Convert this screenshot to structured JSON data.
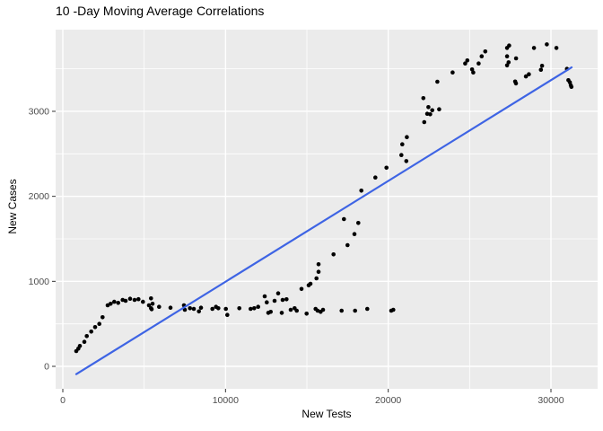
{
  "chart_data": {
    "type": "scatter",
    "title": "10 -Day Moving Average Correlations",
    "xlabel": "New Tests",
    "ylabel": "New Cases",
    "xlim": [
      -441,
      32868
    ],
    "ylim": [
      -264,
      3961
    ],
    "x_ticks": [
      0,
      10000,
      20000,
      30000
    ],
    "x_tick_labels": [
      "0",
      "10000",
      "20000",
      "30000"
    ],
    "x_minor_ticks": [
      5000,
      15000,
      25000
    ],
    "y_ticks": [
      0,
      1000,
      2000,
      3000
    ],
    "y_tick_labels": [
      "0",
      "1000",
      "2000",
      "3000"
    ],
    "y_minor_ticks": [
      500,
      1500,
      2500,
      3500
    ],
    "grid": true,
    "legend": "none",
    "colors": {
      "panel_bg": "#EBEBEB",
      "grid": "#FFFFFF",
      "point": "#000000",
      "trend": "#3E64E4",
      "tick_text": "#4D4D4D",
      "tick_mark": "#333333",
      "axis_title": "#000000",
      "title": "#000000"
    },
    "trend_line": {
      "type": "linear",
      "x1": 827,
      "y1": -92,
      "x2": 31268,
      "y2": 3517
    },
    "points": [
      [
        827,
        180
      ],
      [
        954,
        208
      ],
      [
        1048,
        240
      ],
      [
        1324,
        288
      ],
      [
        1472,
        356
      ],
      [
        1748,
        409
      ],
      [
        1985,
        462
      ],
      [
        2245,
        500
      ],
      [
        2443,
        578
      ],
      [
        2758,
        718
      ],
      [
        2940,
        736
      ],
      [
        3161,
        760
      ],
      [
        3403,
        747
      ],
      [
        3679,
        782
      ],
      [
        3861,
        771
      ],
      [
        4136,
        795
      ],
      [
        4412,
        782
      ],
      [
        4650,
        790
      ],
      [
        4925,
        760
      ],
      [
        5294,
        718
      ],
      [
        5421,
        683
      ],
      [
        5460,
        672
      ],
      [
        5515,
        736
      ],
      [
        5421,
        800
      ],
      [
        5918,
        700
      ],
      [
        6618,
        690
      ],
      [
        7445,
        718
      ],
      [
        7500,
        665
      ],
      [
        7814,
        683
      ],
      [
        8051,
        676
      ],
      [
        8366,
        647
      ],
      [
        8492,
        690
      ],
      [
        9193,
        676
      ],
      [
        9413,
        700
      ],
      [
        9557,
        683
      ],
      [
        10020,
        676
      ],
      [
        10108,
        605
      ],
      [
        10847,
        683
      ],
      [
        11542,
        676
      ],
      [
        11762,
        683
      ],
      [
        12005,
        700
      ],
      [
        12407,
        824
      ],
      [
        12534,
        753
      ],
      [
        12628,
        630
      ],
      [
        12777,
        641
      ],
      [
        13014,
        771
      ],
      [
        13235,
        859
      ],
      [
        13455,
        630
      ],
      [
        13510,
        782
      ],
      [
        13749,
        789
      ],
      [
        14008,
        665
      ],
      [
        14245,
        683
      ],
      [
        14377,
        655
      ],
      [
        14984,
        620
      ],
      [
        15535,
        676
      ],
      [
        15662,
        655
      ],
      [
        15844,
        641
      ],
      [
        15993,
        665
      ],
      [
        17135,
        655
      ],
      [
        17962,
        655
      ],
      [
        18712,
        676
      ],
      [
        20184,
        655
      ],
      [
        20311,
        665
      ],
      [
        14670,
        911
      ],
      [
        15111,
        954
      ],
      [
        15221,
        972
      ],
      [
        15591,
        1035
      ],
      [
        15718,
        1112
      ],
      [
        15718,
        1201
      ],
      [
        16639,
        1317
      ],
      [
        17500,
        1426
      ],
      [
        17279,
        1732
      ],
      [
        17925,
        1556
      ],
      [
        18162,
        1687
      ],
      [
        18349,
        2067
      ],
      [
        19210,
        2221
      ],
      [
        19894,
        2337
      ],
      [
        20810,
        2485
      ],
      [
        20865,
        2612
      ],
      [
        21108,
        2415
      ],
      [
        21141,
        2697
      ],
      [
        22211,
        2873
      ],
      [
        22156,
        3155
      ],
      [
        22465,
        3049
      ],
      [
        22393,
        2971
      ],
      [
        22575,
        2965
      ],
      [
        22707,
        3013
      ],
      [
        23127,
        3024
      ],
      [
        23016,
        3348
      ],
      [
        23954,
        3457
      ],
      [
        24726,
        3563
      ],
      [
        24858,
        3599
      ],
      [
        25151,
        3493
      ],
      [
        25222,
        3457
      ],
      [
        25553,
        3563
      ],
      [
        25741,
        3647
      ],
      [
        25962,
        3704
      ],
      [
        27302,
        3746
      ],
      [
        27429,
        3774
      ],
      [
        27302,
        3647
      ],
      [
        27396,
        3577
      ],
      [
        27302,
        3541
      ],
      [
        27853,
        3623
      ],
      [
        27798,
        3351
      ],
      [
        27849,
        3328
      ],
      [
        28460,
        3411
      ],
      [
        28642,
        3436
      ],
      [
        28957,
        3746
      ],
      [
        29381,
        3489
      ],
      [
        29453,
        3535
      ],
      [
        29745,
        3788
      ],
      [
        30335,
        3746
      ],
      [
        30980,
        3499
      ],
      [
        31069,
        3366
      ],
      [
        31162,
        3341
      ],
      [
        31217,
        3306
      ],
      [
        31256,
        3288
      ]
    ]
  }
}
